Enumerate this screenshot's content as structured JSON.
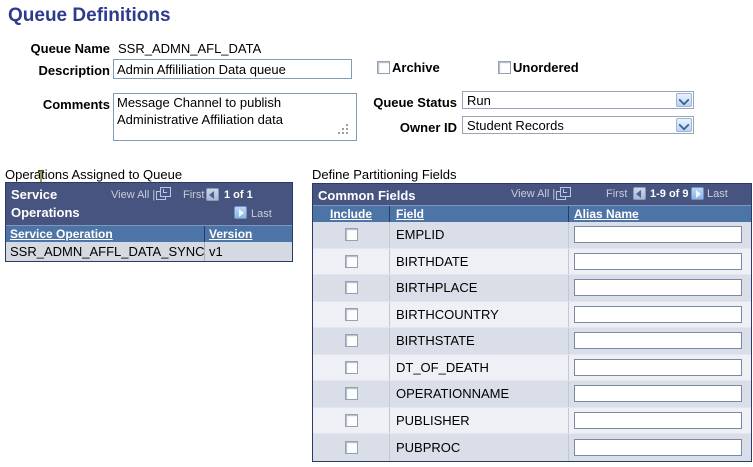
{
  "page": {
    "title": "Queue Definitions"
  },
  "form": {
    "queue_name": {
      "label": "Queue Name",
      "value": "SSR_ADMN_AFL_DATA"
    },
    "description": {
      "label": "Description",
      "value": "Admin Affililiation Data queue"
    },
    "comments": {
      "label": "Comments",
      "value": "Message Channel to publish\nAdministrative Affiliation data"
    },
    "archive": {
      "label": "Archive",
      "checked": false
    },
    "unordered": {
      "label": "Unordered",
      "checked": false
    },
    "queue_status": {
      "label": "Queue Status",
      "value": "Run"
    },
    "owner_id": {
      "label": "Owner ID",
      "value": "Student Records"
    }
  },
  "operations_section": {
    "label": "Operations Assigned to Queue",
    "grid": {
      "title": "Service Operations",
      "view_all": "View All",
      "separator": "|",
      "first": "First",
      "count": "1 of 1",
      "last": "Last",
      "columns": [
        "Service Operation",
        "Version"
      ],
      "rows": [
        {
          "service_operation": "SSR_ADMN_AFFL_DATA_SYNC",
          "version": "v1"
        }
      ]
    }
  },
  "partitioning_section": {
    "label": "Define Partitioning Fields",
    "grid": {
      "title": "Common Fields",
      "view_all": "View All",
      "separator": "|",
      "first": "First",
      "count": "1-9 of 9",
      "last": "Last",
      "columns": [
        "Include",
        "Field",
        "Alias Name"
      ],
      "fields": [
        "EMPLID",
        "BIRTHDATE",
        "BIRTHPLACE",
        "BIRTHCOUNTRY",
        "BIRTHSTATE",
        "DT_OF_DEATH",
        "OPERATIONNAME",
        "PUBLISHER",
        "PUBPROC"
      ],
      "alias_values": [
        "",
        "",
        "",
        "",
        "",
        "",
        "",
        "",
        ""
      ],
      "include_checked": [
        false,
        false,
        false,
        false,
        false,
        false,
        false,
        false,
        false
      ]
    }
  },
  "icons": {
    "new_window": "new-window-icon",
    "prev": "prev-arrow-icon",
    "next": "next-arrow-icon",
    "dropdown": "chevron-down-icon",
    "resize_grip": "resize-grip-icon",
    "text_cursor": "text-cursor"
  },
  "colors": {
    "title": "#2e3b8c",
    "grid_header_bg": "#485480",
    "column_header_bg": "#4d74a7",
    "grid_border": "#2d3968",
    "row_dark": "#dadee8",
    "row_light": "#eef0f5",
    "left_row_bg": "#d5d9e2",
    "nav_dim_text": "#c7cdda",
    "input_border": "#7f9db9"
  }
}
